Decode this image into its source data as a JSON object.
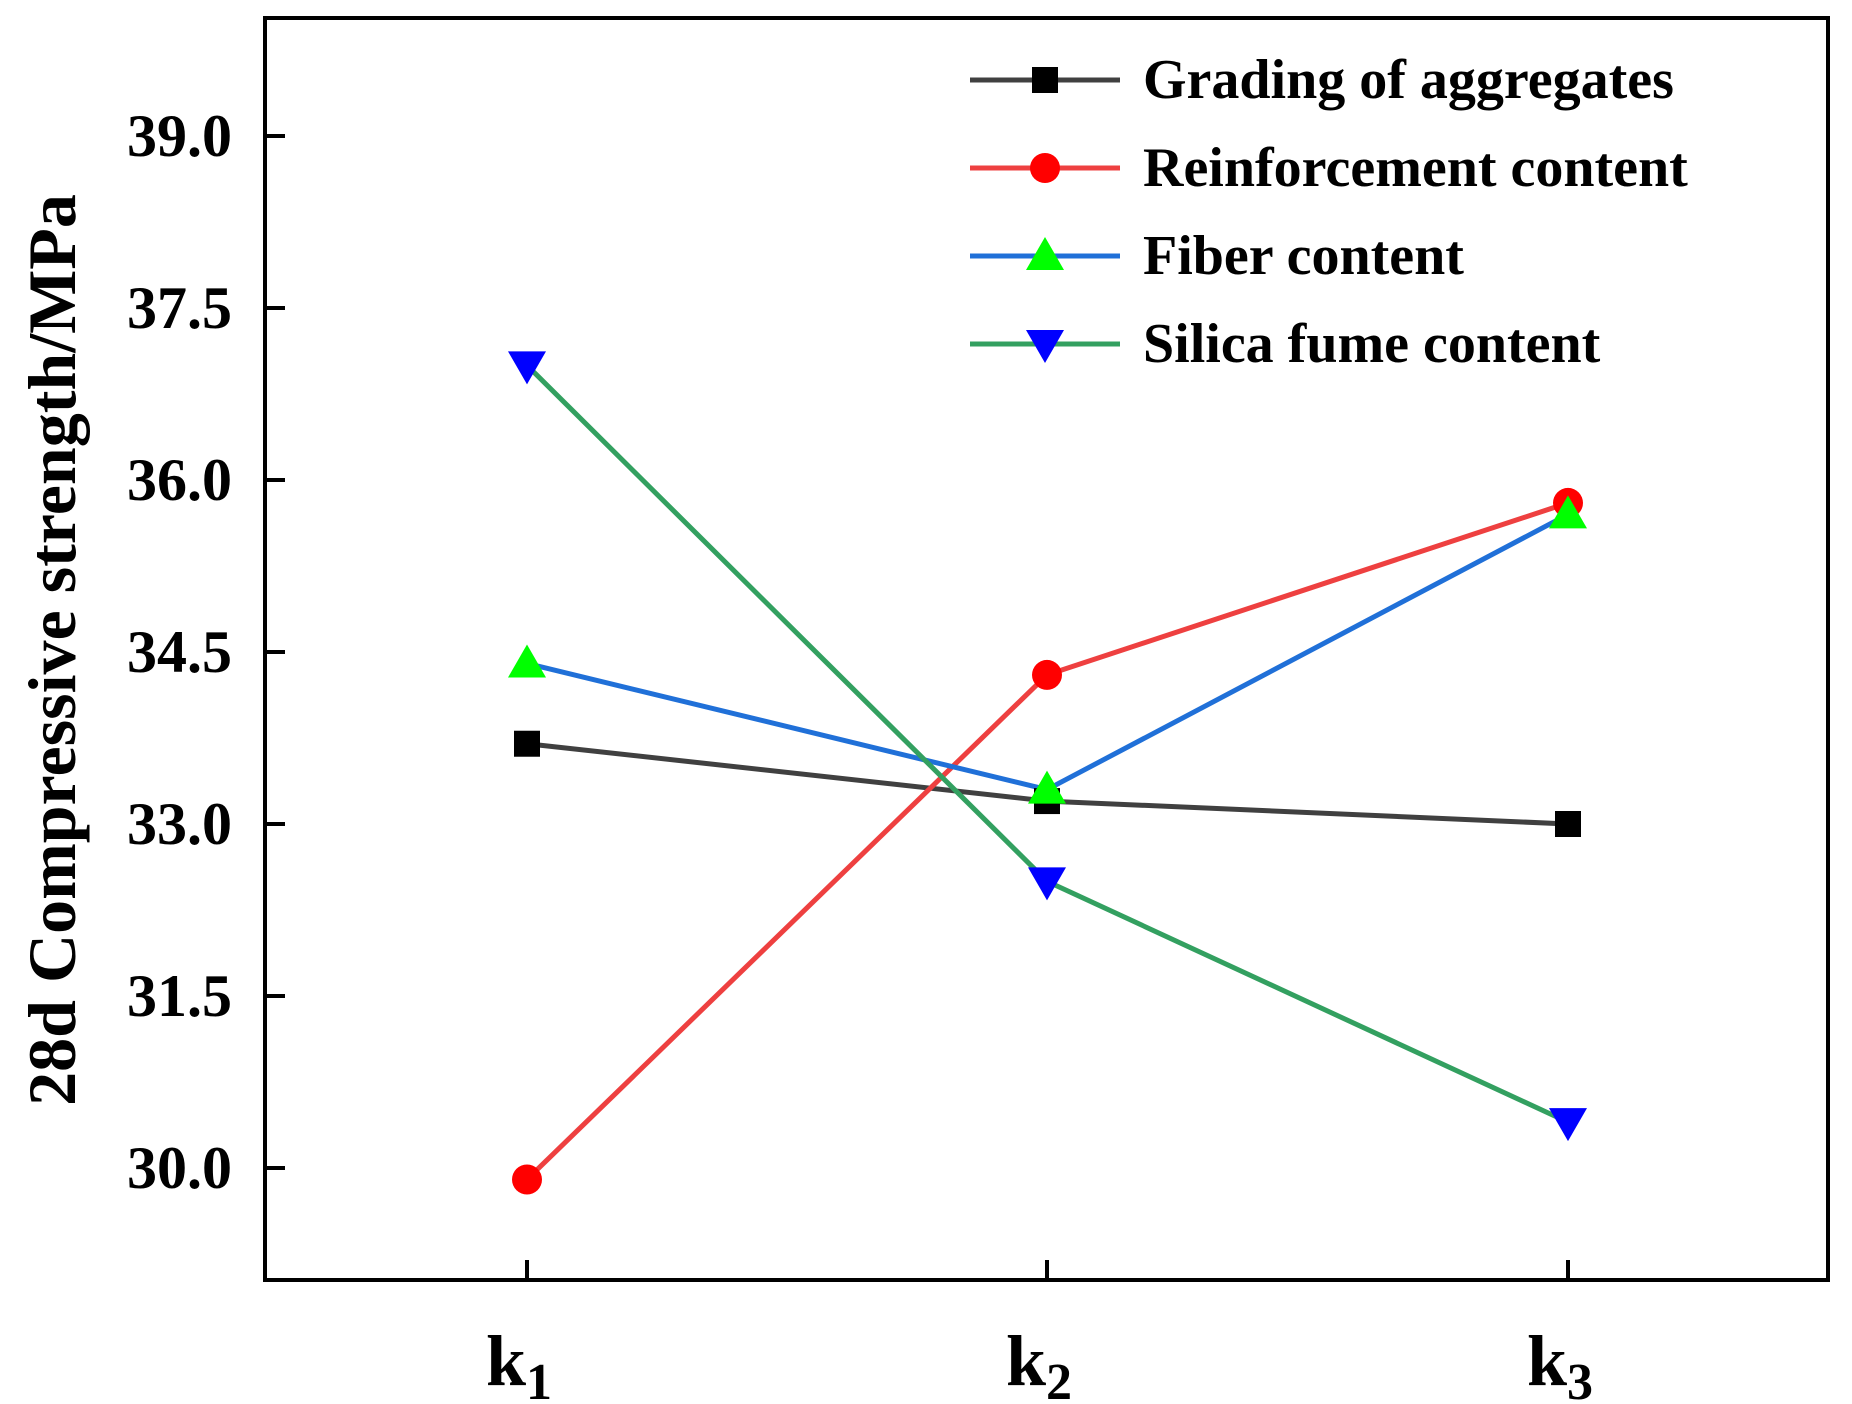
{
  "chart_data": {
    "type": "line",
    "title": "",
    "xlabel": "",
    "ylabel": "28d Compressive strength/MPa",
    "categories": [
      {
        "base": "k",
        "sub": "1"
      },
      {
        "base": "k",
        "sub": "2"
      },
      {
        "base": "k",
        "sub": "3"
      }
    ],
    "ylim": [
      29.0,
      40.0
    ],
    "yticks": [
      30.0,
      31.5,
      33.0,
      34.5,
      36.0,
      37.5,
      39.0
    ],
    "ytick_labels": [
      "30.0",
      "31.5",
      "33.0",
      "34.5",
      "36.0",
      "37.5",
      "39.0"
    ],
    "legend_position": "top-right",
    "grid": false,
    "series": [
      {
        "name": "Grading of aggregates",
        "values": [
          33.7,
          33.2,
          33.0
        ],
        "line_color": "#404040",
        "marker_color": "#000000",
        "marker": "square"
      },
      {
        "name": "Reinforcement content",
        "values": [
          29.9,
          34.3,
          35.8
        ],
        "line_color": "#ee4040",
        "marker_color": "#ff0000",
        "marker": "circle"
      },
      {
        "name": "Fiber content",
        "values": [
          34.4,
          33.3,
          35.7
        ],
        "line_color": "#2070d8",
        "marker_color": "#00ff00",
        "marker": "triangle-up"
      },
      {
        "name": "Silica fume content",
        "values": [
          37.0,
          32.5,
          30.4
        ],
        "line_color": "#33a060",
        "marker_color": "#0000ff",
        "marker": "triangle-down"
      }
    ]
  }
}
